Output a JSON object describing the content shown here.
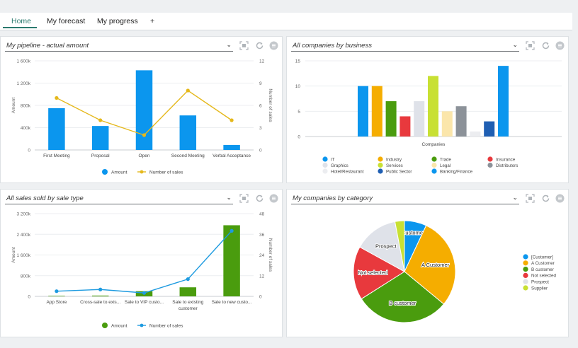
{
  "tabs": [
    {
      "label": "Home",
      "active": true
    },
    {
      "label": "My forecast",
      "active": false
    },
    {
      "label": "My progress",
      "active": false
    },
    {
      "label": "+",
      "active": false
    }
  ],
  "panels": {
    "pipeline": {
      "title": "My pipeline - actual amount"
    },
    "business": {
      "title": "All companies by business"
    },
    "saletype": {
      "title": "All sales sold by sale type"
    },
    "category": {
      "title": "My companies by category"
    }
  },
  "icons": [
    "chevron-down-icon",
    "expand-icon",
    "refresh-icon",
    "menu-icon"
  ],
  "colors": {
    "accent": "#2a7a6e",
    "blue": "#0b96ee",
    "yellow": "#e5b81b",
    "green": "#4a9c0e"
  },
  "chart_data": [
    {
      "id": "pipeline",
      "type": "bar",
      "categories": [
        "First Meeting",
        "Proposal",
        "Open",
        "Second Meeting",
        "Verbal Acceptance"
      ],
      "series": [
        {
          "name": "Amount",
          "kind": "bar",
          "axis": "left",
          "color": "#0b96ee",
          "values": [
            750000,
            430000,
            1430000,
            620000,
            90000
          ]
        },
        {
          "name": "Number of sales",
          "kind": "line",
          "axis": "right",
          "color": "#e5b81b",
          "values": [
            7,
            4,
            2,
            8,
            4
          ]
        }
      ],
      "yleft": {
        "label": "Amount",
        "ticks": [
          "0",
          "400k",
          "800k",
          "1 200k",
          "1 600k"
        ],
        "range": [
          0,
          1600000
        ]
      },
      "yright": {
        "label": "Number of sales",
        "ticks": [
          "0",
          "3",
          "6",
          "9",
          "12"
        ],
        "range": [
          0,
          12
        ]
      }
    },
    {
      "id": "business",
      "type": "bar",
      "xlabel": "Companies",
      "yticks": [
        "0",
        "5",
        "10",
        "15"
      ],
      "ylim": [
        0,
        15
      ],
      "bars": [
        {
          "name": "IT",
          "value": 10,
          "color": "#0b96ee"
        },
        {
          "name": "Industry",
          "value": 10,
          "color": "#f5ad00"
        },
        {
          "name": "Trade",
          "value": 7,
          "color": "#4a9c0e"
        },
        {
          "name": "Insurance",
          "value": 4,
          "color": "#e8393d"
        },
        {
          "name": "Graphics",
          "value": 7,
          "color": "#dfe2e9"
        },
        {
          "name": "Services",
          "value": 12,
          "color": "#c8e033"
        },
        {
          "name": "Legal",
          "value": 5,
          "color": "#fbe6ab"
        },
        {
          "name": "Distributors",
          "value": 6,
          "color": "#8c9299"
        },
        {
          "name": "Hotel/Restaurant",
          "value": 1,
          "color": "#ecedf0"
        },
        {
          "name": "Public Sector",
          "value": 3,
          "color": "#1f5fb3"
        },
        {
          "name": "Banking/Finance",
          "value": 14,
          "color": "#0b96ee"
        }
      ],
      "legend": [
        [
          "IT",
          "Industry",
          "Trade",
          "Insurance"
        ],
        [
          "Graphics",
          "Services",
          "Legal",
          "Distributors"
        ],
        [
          "Hotel/Restaurant",
          "Public Sector",
          "Banking/Finance"
        ]
      ]
    },
    {
      "id": "saletype",
      "type": "bar",
      "categories": [
        "App Store",
        "Cross-sale to exis...",
        "Sale to VIP custo...",
        "Sale to existing customer",
        "Sale to new custo..."
      ],
      "series": [
        {
          "name": "Amount",
          "kind": "bar",
          "axis": "left",
          "color": "#4a9c0e",
          "values": [
            20000,
            30000,
            200000,
            350000,
            2750000
          ]
        },
        {
          "name": "Number of sales",
          "kind": "line",
          "axis": "right",
          "color": "#1e9be0",
          "values": [
            3,
            4,
            2,
            10,
            38
          ]
        }
      ],
      "yleft": {
        "label": "Amount",
        "ticks": [
          "0",
          "800k",
          "1 600k",
          "2 400k",
          "3 200k"
        ],
        "range": [
          0,
          3200000
        ]
      },
      "yright": {
        "label": "Number of sales",
        "ticks": [
          "0",
          "12",
          "24",
          "36",
          "48"
        ],
        "range": [
          0,
          48
        ]
      }
    },
    {
      "id": "category",
      "type": "pie",
      "slices": [
        {
          "name": "[Customer]",
          "value": 7,
          "color": "#0b96ee"
        },
        {
          "name": "A Customer",
          "value": 29,
          "color": "#f5ad00"
        },
        {
          "name": "B customer",
          "value": 30,
          "color": "#4a9c0e"
        },
        {
          "name": "Not selected",
          "value": 17,
          "color": "#e8393d"
        },
        {
          "name": "Prospect",
          "value": 14,
          "color": "#dfe2e9"
        },
        {
          "name": "Supplier",
          "value": 3,
          "color": "#c8e033"
        }
      ]
    }
  ]
}
